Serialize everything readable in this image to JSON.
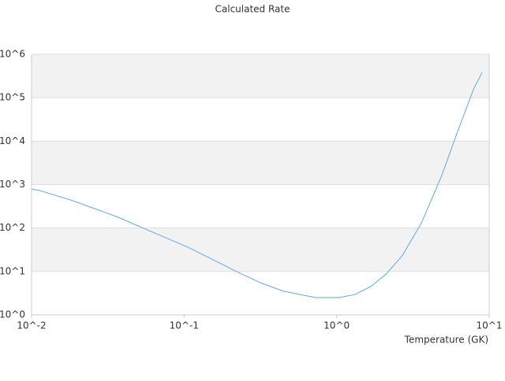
{
  "chart_data": {
    "type": "line",
    "title": "Calculated Rate",
    "x_label": "Temperature (GK)",
    "log_x": true,
    "log_y": true,
    "grid": true,
    "banded": true,
    "xlim": [
      0.01,
      10
    ],
    "ylim": [
      1,
      1000000
    ],
    "xticks": [
      {
        "value": 0.01,
        "label": "10^-2"
      },
      {
        "value": 0.1,
        "label": "10^-1"
      },
      {
        "value": 1,
        "label": "10^0"
      },
      {
        "value": 10,
        "label": "10^1"
      }
    ],
    "yticks": [
      {
        "value": 1,
        "label": "10^0"
      },
      {
        "value": 10,
        "label": "10^1"
      },
      {
        "value": 100,
        "label": "10^2"
      },
      {
        "value": 1000,
        "label": "10^3"
      },
      {
        "value": 10000,
        "label": "10^4"
      },
      {
        "value": 100000,
        "label": "10^5"
      },
      {
        "value": 1000000,
        "label": "10^6"
      }
    ],
    "x": [
      0.01,
      0.0113,
      0.0181,
      0.0259,
      0.037,
      0.053,
      0.0757,
      0.108,
      0.155,
      0.22,
      0.316,
      0.45,
      0.73,
      1.04,
      1.32,
      1.67,
      2.11,
      2.69,
      3.6,
      4.9,
      6.2,
      7.9,
      8.97
    ],
    "series": [
      {
        "color": "#5ea8e8",
        "values": [
          790,
          730,
          440,
          280,
          177,
          102,
          60,
          35,
          18.6,
          10,
          5.5,
          3.5,
          2.5,
          2.5,
          2.95,
          4.5,
          8.7,
          23,
          132,
          1660,
          16600,
          158000,
          380000
        ]
      }
    ]
  }
}
